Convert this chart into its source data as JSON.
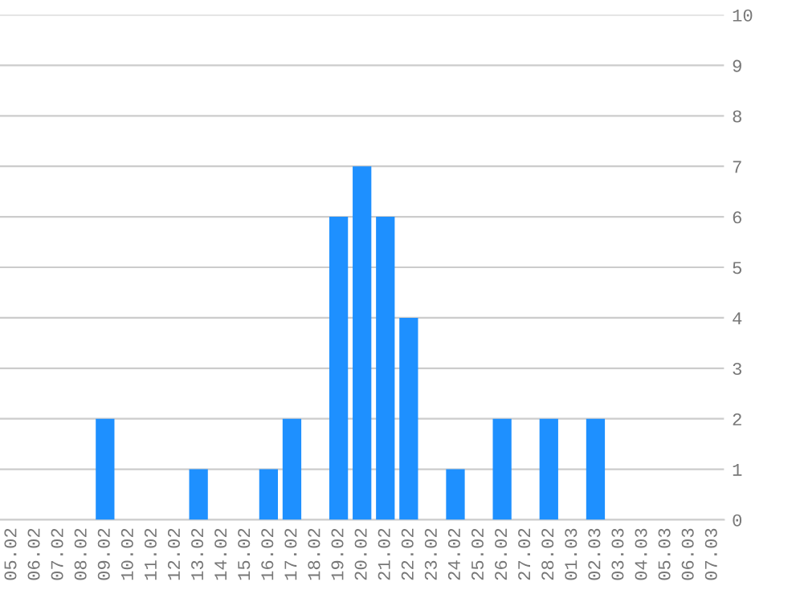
{
  "chart_data": {
    "type": "bar",
    "categories": [
      "05.02",
      "06.02",
      "07.02",
      "08.02",
      "09.02",
      "10.02",
      "11.02",
      "12.02",
      "13.02",
      "14.02",
      "15.02",
      "16.02",
      "17.02",
      "18.02",
      "19.02",
      "20.02",
      "21.02",
      "22.02",
      "23.02",
      "24.02",
      "25.02",
      "26.02",
      "27.02",
      "28.02",
      "01.03",
      "02.03",
      "03.03",
      "04.03",
      "05.03",
      "06.03",
      "07.03"
    ],
    "values": [
      0,
      0,
      0,
      0,
      2,
      0,
      0,
      0,
      1,
      0,
      0,
      1,
      2,
      0,
      6,
      7,
      6,
      4,
      0,
      1,
      0,
      2,
      0,
      2,
      0,
      2,
      0,
      0,
      0,
      0,
      0
    ],
    "color": "#1e90ff",
    "ylim": [
      0,
      10
    ],
    "yticks": [
      0,
      1,
      2,
      3,
      4,
      5,
      6,
      7,
      8,
      9,
      10
    ],
    "grid": "y"
  }
}
